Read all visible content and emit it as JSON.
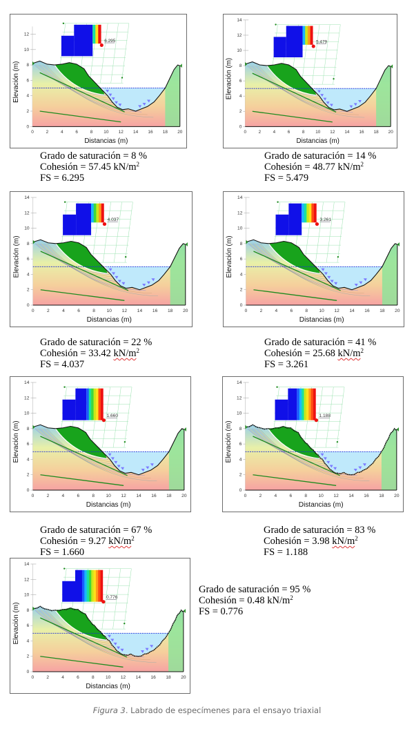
{
  "figure": {
    "caption_label": "Figura 3",
    "caption_text": ". Labrado de especímenes para el ensayo triaxial"
  },
  "chart_data": [
    {
      "type": "diagram",
      "title": "",
      "xlabel": "Distancias (m)",
      "ylabel": "Elevación (m)",
      "xticks": [
        "0",
        "2",
        "4",
        "6",
        "8",
        "10",
        "12",
        "14",
        "16",
        "18",
        "20"
      ],
      "yticks": [
        "0",
        "2",
        "4",
        "6",
        "8",
        "10",
        "12"
      ],
      "xlim": [
        0,
        20
      ],
      "ylim": [
        0,
        13
      ],
      "fs_label": "6.295",
      "saturation": "Grado de saturación = 8 %",
      "cohesion_prefix": "Cohesión = 57.45 ",
      "cohesion_unit": "kN/m",
      "cohesion_exp": "2",
      "fs_text": "FS = 6.295",
      "underline_unit": false,
      "rough_surface": false,
      "contour_stage": 1
    },
    {
      "type": "diagram",
      "title": "",
      "xlabel": "Distancias (m)",
      "ylabel": "Elevación (m)",
      "xticks": [
        "0",
        "2",
        "4",
        "6",
        "8",
        "10",
        "12",
        "14",
        "16",
        "18",
        "20"
      ],
      "yticks": [
        "0",
        "2",
        "4",
        "6",
        "8",
        "10",
        "12",
        "14"
      ],
      "xlim": [
        0,
        20
      ],
      "ylim": [
        0,
        14
      ],
      "fs_label": "5.479",
      "saturation": "Grado de saturación = 14 %",
      "cohesion_prefix": "Cohesión = 48.77 ",
      "cohesion_unit": "kN/m",
      "cohesion_exp": "2",
      "fs_text": "FS = 5.479",
      "underline_unit": false,
      "rough_surface": false,
      "contour_stage": 2
    },
    {
      "type": "diagram",
      "title": "",
      "xlabel": "Distancias (m)",
      "ylabel": "Elevación (m)",
      "xticks": [
        "0",
        "2",
        "4",
        "6",
        "8",
        "10",
        "12",
        "14",
        "16",
        "18",
        "20"
      ],
      "yticks": [
        "0",
        "2",
        "4",
        "6",
        "8",
        "10",
        "12",
        "14"
      ],
      "xlim": [
        0,
        20
      ],
      "ylim": [
        0,
        14
      ],
      "fs_label": "4.037",
      "saturation": "Grado de saturación = 22 %",
      "cohesion_prefix": "Cohesión = 33.42 ",
      "cohesion_unit": "kN/m",
      "cohesion_exp": "2",
      "fs_text": "FS = 4.037",
      "underline_unit": true,
      "rough_surface": false,
      "contour_stage": 3
    },
    {
      "type": "diagram",
      "title": "",
      "xlabel": "Distancias (m)",
      "ylabel": "Elevación (m)",
      "xticks": [
        "0",
        "2",
        "4",
        "6",
        "8",
        "10",
        "12",
        "14",
        "16",
        "18",
        "20"
      ],
      "yticks": [
        "0",
        "2",
        "4",
        "6",
        "8",
        "10",
        "12",
        "14"
      ],
      "xlim": [
        0,
        20
      ],
      "ylim": [
        0,
        14
      ],
      "fs_label": "3.261",
      "saturation": "Grado de saturación = 41 %",
      "cohesion_prefix": "Cohesión = 25.68 ",
      "cohesion_unit": "kN/m",
      "cohesion_exp": "2",
      "fs_text": "FS = 3.261",
      "underline_unit": true,
      "rough_surface": false,
      "contour_stage": 4
    },
    {
      "type": "diagram",
      "title": "",
      "xlabel": "Distancias (m)",
      "ylabel": "Elevación (m)",
      "xticks": [
        "0",
        "2",
        "4",
        "6",
        "8",
        "10",
        "12",
        "14",
        "16",
        "18",
        "20"
      ],
      "yticks": [
        "0",
        "2",
        "4",
        "6",
        "8",
        "10",
        "12",
        "14"
      ],
      "xlim": [
        0,
        20
      ],
      "ylim": [
        0,
        14
      ],
      "fs_label": "1.660",
      "saturation": "Grado de saturación = 67 %",
      "cohesion_prefix": "Cohesión = 9.27 ",
      "cohesion_unit": "kN/m",
      "cohesion_exp": "2",
      "fs_text": "FS = 1.660",
      "underline_unit": true,
      "rough_surface": false,
      "contour_stage": 5
    },
    {
      "type": "diagram",
      "title": "",
      "xlabel": "Distancias (m)",
      "ylabel": "Elevación (m)",
      "xticks": [
        "0",
        "2",
        "4",
        "6",
        "8",
        "10",
        "12",
        "14",
        "16",
        "18",
        "20"
      ],
      "yticks": [
        "0",
        "2",
        "4",
        "6",
        "8",
        "10",
        "12",
        "14"
      ],
      "xlim": [
        0,
        20
      ],
      "ylim": [
        0,
        14
      ],
      "fs_label": "1.188",
      "saturation": "Grado de saturación = 83 %",
      "cohesion_prefix": "Cohesión = 3.98 ",
      "cohesion_unit": "kN/m",
      "cohesion_exp": "2",
      "fs_text": "FS = 1.188",
      "underline_unit": true,
      "rough_surface": true,
      "contour_stage": 6
    },
    {
      "type": "diagram",
      "title": "",
      "xlabel": "Distancias (m)",
      "ylabel": "Elevación (m)",
      "xticks": [
        "0",
        "2",
        "4",
        "6",
        "8",
        "10",
        "12",
        "14",
        "16",
        "18",
        "20"
      ],
      "yticks": [
        "0",
        "2",
        "4",
        "6",
        "8",
        "10",
        "12",
        "14"
      ],
      "xlim": [
        0,
        20
      ],
      "ylim": [
        0,
        14
      ],
      "fs_label": "0.776",
      "saturation": "Grado de saturación = 95 %",
      "cohesion_prefix": "Cohesión = 0.48 ",
      "cohesion_unit": "kN/m",
      "cohesion_exp": "2",
      "fs_text": "FS = 0.776",
      "underline_unit": false,
      "rough_surface": true,
      "contour_stage": 7
    }
  ],
  "colors": {
    "water": "#bfe9fb",
    "water_line": "#1a2ad8",
    "slide_mass": "#18a31c",
    "soil_bottom": "#f6a3a3",
    "soil_top": "#e8f0a8",
    "right_bank": "#8fe39a",
    "grid": "#9be2b0",
    "anchor": "#1e8a1e",
    "frame": "#6b6b6b",
    "caption": "#6a6a6a"
  }
}
